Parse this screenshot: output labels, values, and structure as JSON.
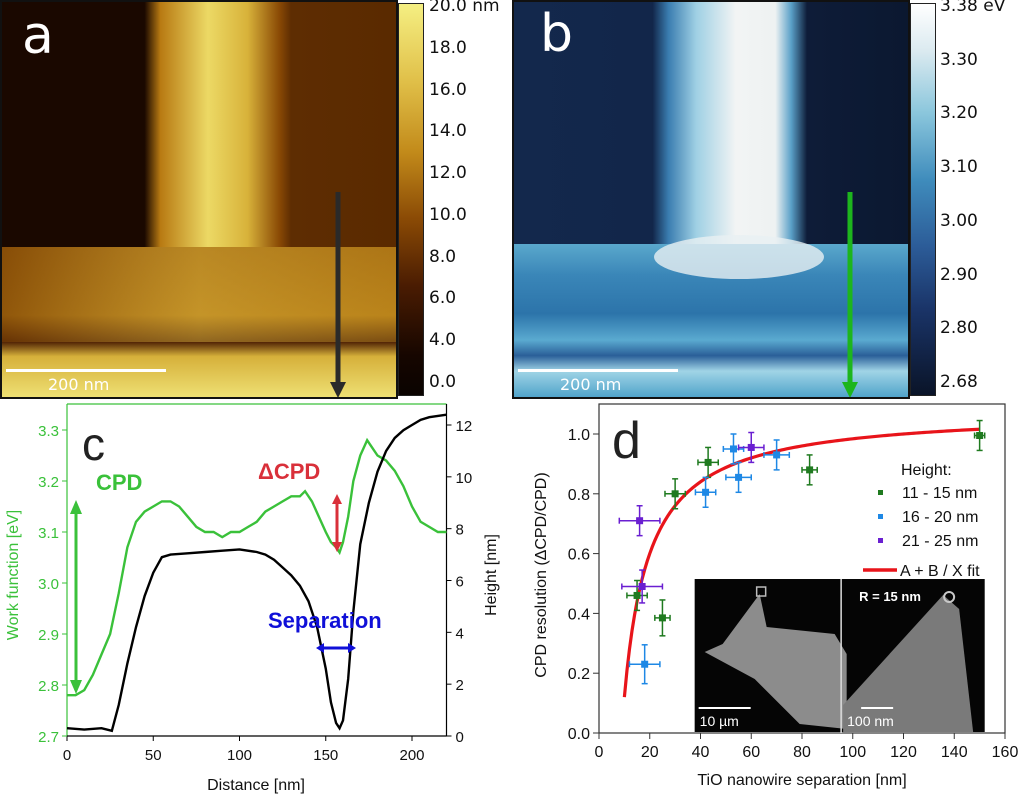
{
  "panel_a": {
    "letter": "a",
    "scalebar_label": "200 nm",
    "colorbar_unit": "nm",
    "colorbar_ticks": [
      "20.0 nm",
      "18.0",
      "16.0",
      "14.0",
      "12.0",
      "10.0",
      "8.0",
      "6.0",
      "4.0",
      "0.0"
    ],
    "colors": {
      "dark": "#1a0800",
      "mid": "#8a4a00",
      "bright": "#f2e27a"
    }
  },
  "panel_b": {
    "letter": "b",
    "scalebar_label": "200 nm",
    "colorbar_ticks": [
      "3.38",
      "3.30",
      "3.20",
      "3.10",
      "3.00",
      "2.90",
      "2.80",
      "2.68"
    ],
    "colorbar_unit": "eV",
    "colors": {
      "dark": "#0c1830",
      "mid": "#2e6aa0",
      "bright": "#f4f6f6",
      "arrow": "#1db51d"
    }
  },
  "chart_data": [
    {
      "type": "line",
      "panel": "c",
      "xlabel": "Distance [nm]",
      "ylabel_left": "Work function [eV]",
      "ylabel_right": "Height [nm]",
      "xlim": [
        0,
        220
      ],
      "ylim_left": [
        2.7,
        3.35
      ],
      "ylim_right": [
        0,
        12.7
      ],
      "xticks": [
        0,
        50,
        100,
        150,
        200
      ],
      "yticks_left": [
        2.7,
        2.8,
        2.9,
        3.0,
        3.1,
        3.2,
        3.3
      ],
      "yticks_right": [
        0,
        2,
        4,
        6,
        8,
        10,
        12
      ],
      "annotations": {
        "cpd": "CPD",
        "dcpd": "ΔCPD",
        "separation": "Separation"
      },
      "series": [
        {
          "name": "Work function",
          "axis": "left",
          "color": "#3ac13a",
          "x": [
            0,
            5,
            10,
            15,
            20,
            25,
            30,
            35,
            40,
            45,
            50,
            55,
            60,
            65,
            70,
            75,
            80,
            85,
            90,
            95,
            100,
            105,
            110,
            115,
            120,
            125,
            130,
            135,
            138,
            142,
            146,
            150,
            153,
            156,
            158,
            160,
            163,
            166,
            170,
            174,
            176,
            180,
            185,
            190,
            195,
            200,
            205,
            210,
            215,
            220
          ],
          "y": [
            2.78,
            2.78,
            2.79,
            2.82,
            2.86,
            2.9,
            2.98,
            3.07,
            3.12,
            3.14,
            3.15,
            3.16,
            3.16,
            3.15,
            3.13,
            3.11,
            3.1,
            3.1,
            3.09,
            3.1,
            3.1,
            3.11,
            3.12,
            3.14,
            3.15,
            3.16,
            3.17,
            3.17,
            3.18,
            3.16,
            3.13,
            3.1,
            3.08,
            3.07,
            3.06,
            3.08,
            3.13,
            3.2,
            3.25,
            3.28,
            3.27,
            3.25,
            3.24,
            3.22,
            3.19,
            3.15,
            3.12,
            3.11,
            3.1,
            3.1
          ]
        },
        {
          "name": "Height",
          "axis": "right",
          "color": "#000000",
          "x": [
            0,
            10,
            20,
            26,
            30,
            35,
            40,
            45,
            50,
            55,
            60,
            70,
            80,
            90,
            100,
            110,
            115,
            120,
            125,
            130,
            135,
            140,
            145,
            150,
            153,
            156,
            158,
            160,
            163,
            166,
            170,
            175,
            180,
            185,
            190,
            195,
            200,
            205,
            210,
            215,
            220
          ],
          "y": [
            0.3,
            0.25,
            0.3,
            0.2,
            1.2,
            2.8,
            4.2,
            5.4,
            6.3,
            6.9,
            7.0,
            7.05,
            7.1,
            7.15,
            7.2,
            7.1,
            7.0,
            6.8,
            6.5,
            6.2,
            5.8,
            5.2,
            4.2,
            2.6,
            1.3,
            0.5,
            0.3,
            0.6,
            2.2,
            4.8,
            7.4,
            9.0,
            10.2,
            11.0,
            11.5,
            11.8,
            12.0,
            12.2,
            12.3,
            12.35,
            12.4
          ]
        }
      ]
    },
    {
      "type": "scatter",
      "panel": "d",
      "xlabel": "TiO nanowire  separation [nm]",
      "ylabel": "CPD resolution (ΔCPD/CPD)",
      "xlim": [
        0,
        160
      ],
      "ylim": [
        0,
        1.1
      ],
      "xticks": [
        0,
        20,
        40,
        60,
        80,
        100,
        120,
        140,
        160
      ],
      "yticks": [
        0.0,
        0.2,
        0.4,
        0.6,
        0.8,
        1.0
      ],
      "legend_title": "Height:",
      "legend_position": "right",
      "series": [
        {
          "name": "11 - 15 nm",
          "color": "#1f7a1f",
          "points": [
            {
              "x": 15,
              "y": 0.46,
              "xerr": 4,
              "yerr": 0.05
            },
            {
              "x": 25,
              "y": 0.385,
              "xerr": 3,
              "yerr": 0.06
            },
            {
              "x": 30,
              "y": 0.8,
              "xerr": 4,
              "yerr": 0.05
            },
            {
              "x": 43,
              "y": 0.905,
              "xerr": 4,
              "yerr": 0.05
            },
            {
              "x": 83,
              "y": 0.88,
              "xerr": 3,
              "yerr": 0.05
            },
            {
              "x": 150,
              "y": 0.995,
              "xerr": 2,
              "yerr": 0.05
            }
          ]
        },
        {
          "name": "16 - 20 nm",
          "color": "#1e88e5",
          "points": [
            {
              "x": 18,
              "y": 0.23,
              "xerr": 6,
              "yerr": 0.065
            },
            {
              "x": 42,
              "y": 0.805,
              "xerr": 4,
              "yerr": 0.05
            },
            {
              "x": 53,
              "y": 0.95,
              "xerr": 4,
              "yerr": 0.05
            },
            {
              "x": 55,
              "y": 0.855,
              "xerr": 5,
              "yerr": 0.05
            },
            {
              "x": 70,
              "y": 0.93,
              "xerr": 5,
              "yerr": 0.05
            }
          ]
        },
        {
          "name": "21 - 25 nm",
          "color": "#6a1fd1",
          "points": [
            {
              "x": 16,
              "y": 0.71,
              "xerr": 8,
              "yerr": 0.05
            },
            {
              "x": 17,
              "y": 0.49,
              "xerr": 8,
              "yerr": 0.055
            },
            {
              "x": 60,
              "y": 0.955,
              "xerr": 5,
              "yerr": 0.05
            }
          ]
        }
      ],
      "fit": {
        "name": "A + B / X fit",
        "color": "#e8141a",
        "A": 1.08,
        "B": -9.6,
        "x_range": [
          10,
          150
        ]
      },
      "inset": {
        "left_scalebar": "10 µm",
        "right_scalebar": "100 nm",
        "radius_label_var": "R",
        "radius_label_value": "= 15 nm"
      }
    }
  ]
}
